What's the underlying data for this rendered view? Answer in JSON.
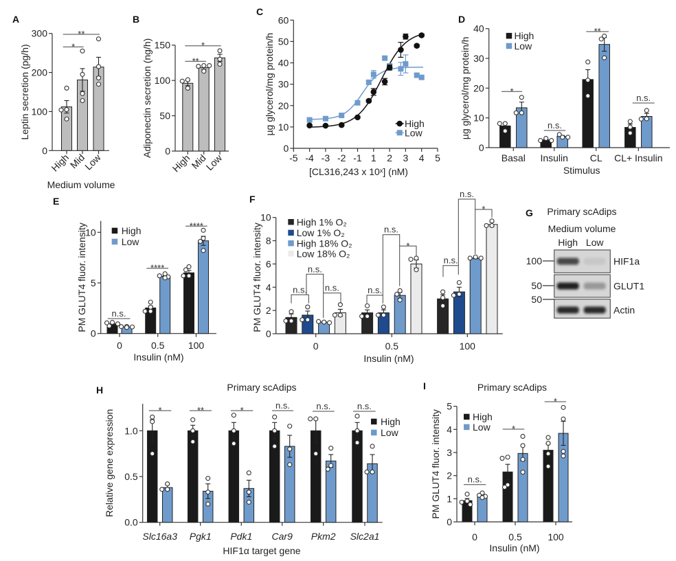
{
  "chart_data": [
    {
      "panel_label": "A",
      "type": "bar",
      "title": "",
      "ylabel": "Leptin secretion (pg/h)",
      "xlabel": "Medium volume",
      "categories": [
        "High",
        "Mid",
        "Low"
      ],
      "ylim": [
        0,
        300
      ],
      "yticks": [
        0,
        100,
        200,
        300
      ],
      "ytick_labels": [
        "0",
        "100",
        "200",
        "300"
      ],
      "grid": false,
      "legend": "none",
      "series": [
        {
          "name": "",
          "color": "#bdbdbd",
          "values": [
            112,
            181,
            214
          ],
          "error": [
            16,
            29,
            25
          ],
          "points": [
            [
              160,
              105,
              104,
              81
            ],
            [
              255,
              195,
              146,
              128
            ],
            [
              286,
              215,
              186,
              170
            ]
          ]
        }
      ],
      "significance": [
        {
          "from": "High",
          "to": "Mid",
          "label": "*"
        },
        {
          "from": "High",
          "to": "Low",
          "label": "**"
        }
      ]
    },
    {
      "panel_label": "B",
      "type": "bar",
      "title": "",
      "ylabel": "Adiponectin secretion (ng/h)",
      "xlabel": "",
      "categories": [
        "High",
        "Mid",
        "Low"
      ],
      "ylim": [
        0,
        150
      ],
      "yticks": [
        0,
        50,
        100,
        150
      ],
      "ytick_labels": [
        "0",
        "50",
        "100",
        "150"
      ],
      "grid": false,
      "legend": "none",
      "series": [
        {
          "name": "",
          "color": "#bdbdbd",
          "values": [
            96,
            118,
            132
          ],
          "error": [
            3.5,
            2.5,
            5
          ],
          "points": [
            [
              101,
              99,
              89
            ],
            [
              121,
              120,
              121,
              113
            ],
            [
              142,
              130,
              123
            ]
          ]
        }
      ],
      "significance": [
        {
          "from": "High",
          "to": "Mid",
          "label": "**"
        },
        {
          "from": "High",
          "to": "Low",
          "label": "*"
        }
      ]
    },
    {
      "panel_label": "C",
      "type": "line",
      "title": "",
      "ylabel": "µg glycerol/mg protein/h",
      "xlabel": "[CL316,243 x 10ˣ] (nM)",
      "xticks": [
        -5,
        -4,
        -3,
        -2,
        -1,
        1,
        2,
        3,
        4,
        5
      ],
      "xtick_labels": [
        "-5",
        "-4",
        "-3",
        "-2",
        "-1",
        "1",
        "2",
        "3",
        "4",
        "5"
      ],
      "xlim": [
        -5,
        5
      ],
      "ylim": [
        0,
        60
      ],
      "yticks": [
        0,
        10,
        20,
        30,
        40,
        50,
        60
      ],
      "ytick_labels": [
        "0",
        "10",
        "20",
        "30",
        "40",
        "50",
        "60"
      ],
      "grid": false,
      "legend": "bottom-right",
      "series": [
        {
          "name": "High",
          "color": "#111111",
          "marker": "circle",
          "x": [
            -4,
            -3,
            -2,
            -1,
            0.4,
            1,
            1.7,
            2,
            2.7,
            3,
            3.7,
            4
          ],
          "y": [
            10.7,
            10.6,
            10.9,
            14.5,
            22.2,
            26.4,
            31.2,
            37.8,
            46.1,
            52.3,
            48.0,
            52.9
          ],
          "error": [
            0.4,
            0.3,
            0.3,
            0.5,
            0.6,
            1.6,
            1.5,
            1.2,
            3.5,
            1.2,
            0.6,
            0.6
          ],
          "fit": {
            "model": "sigmoidal dose-response",
            "bottom": 9.8,
            "top": 55,
            "ec50_x": 1.5,
            "slope": 1.3
          }
        },
        {
          "name": "Low",
          "color": "#6f9bcc",
          "marker": "square",
          "x": [
            -4,
            -3,
            -2,
            -1,
            0.4,
            1,
            1.7,
            2,
            2.7,
            3,
            3.7,
            4
          ],
          "y": [
            13.3,
            13.9,
            15.4,
            21.3,
            30.9,
            34.6,
            42.2,
            38.6,
            37.2,
            39.5,
            34.2,
            33.2
          ],
          "error": [
            0.4,
            0.4,
            0.5,
            0.5,
            0.6,
            1.8,
            0.5,
            1.0,
            3.0,
            4.2,
            0.6,
            0.6
          ],
          "fit": {
            "model": "sigmoidal dose-response",
            "bottom": 13.5,
            "top": 38,
            "ec50_x": -0.4,
            "slope": 1.8
          }
        }
      ]
    },
    {
      "panel_label": "D",
      "type": "bar",
      "title": "",
      "ylabel": "µg glycerol/mg protein/h",
      "xlabel": "Stimulus",
      "categories": [
        "Basal",
        "Insulin",
        "CL",
        "CL+ Insulin"
      ],
      "ylim": [
        0,
        40
      ],
      "yticks": [
        0,
        10,
        20,
        30,
        40
      ],
      "ytick_labels": [
        "0",
        "10",
        "20",
        "30",
        "40"
      ],
      "grid": false,
      "legend": "top-left",
      "series": [
        {
          "name": "High",
          "color": "#1a1a1a",
          "values": [
            7.3,
            2.6,
            22.9,
            6.8
          ],
          "error": [
            0.8,
            0.3,
            3.3,
            1.1
          ],
          "points": [
            [
              8.1,
              8.1,
              5.6
            ],
            [
              3.1,
              2.4,
              2.4
            ],
            [
              28.8,
              22.7,
              17.4
            ],
            [
              8.8,
              6.9,
              4.9
            ]
          ]
        },
        {
          "name": "Low",
          "color": "#6f9bcc",
          "values": [
            13.4,
            3.8,
            34.7,
            10.5
          ],
          "error": [
            1.9,
            0.3,
            2.3,
            1.0
          ],
          "points": [
            [
              16.9,
              11.7,
              11.7
            ],
            [
              3.5,
              4.4,
              3.5
            ],
            [
              37.5,
              36.5,
              30.2
            ],
            [
              9.7,
              12.5,
              9.6
            ]
          ]
        }
      ],
      "significance": [
        {
          "category": "Basal",
          "label": "*"
        },
        {
          "category": "Insulin",
          "label": "n.s."
        },
        {
          "category": "CL",
          "label": "**"
        },
        {
          "category": "CL+ Insulin",
          "label": "n.s."
        }
      ]
    },
    {
      "panel_label": "E",
      "type": "bar",
      "title": "",
      "ylabel": "PM GLUT4 fluor. intensity",
      "xlabel": "Insulin (nM)",
      "categories": [
        "0",
        "0.5",
        "100"
      ],
      "ylim": [
        0,
        11
      ],
      "yticks": [
        0,
        5,
        10
      ],
      "ytick_labels": [
        "0",
        "5",
        "10"
      ],
      "grid": false,
      "legend": "top-left",
      "series": [
        {
          "name": "High",
          "color": "#1a1a1a",
          "values": [
            0.95,
            2.53,
            6.0
          ],
          "error": [
            0.1,
            0.2,
            0.23
          ],
          "points": [
            [
              1.1,
              1.05,
              0.95,
              0.75
            ],
            [
              3.1,
              2.6,
              2.2,
              2.2
            ],
            [
              6.6,
              6.3,
              5.7,
              5.7
            ]
          ]
        },
        {
          "name": "Low",
          "color": "#6f9bcc",
          "values": [
            0.65,
            5.65,
            9.16
          ],
          "error": [
            0.05,
            0.08,
            0.45
          ],
          "points": [
            [
              0.7,
              0.68,
              0.65,
              0.6
            ],
            [
              5.9,
              5.7,
              5.6,
              5.5
            ],
            [
              10.2,
              9.4,
              9.1,
              8.2
            ]
          ]
        }
      ],
      "significance": [
        {
          "category": "0",
          "label": "n.s."
        },
        {
          "category": "0.5",
          "label": "****"
        },
        {
          "category": "100",
          "label": "****"
        }
      ]
    },
    {
      "panel_label": "F",
      "type": "bar",
      "title": "",
      "ylabel": "PM GLUT4 fluor. intensity",
      "xlabel": "Insulin (nM)",
      "categories": [
        "0",
        "0.5",
        "100"
      ],
      "ylim": [
        0,
        10
      ],
      "yticks": [
        0,
        2,
        4,
        6,
        8,
        10
      ],
      "ytick_labels": [
        "0",
        "2",
        "4",
        "6",
        "8",
        "10"
      ],
      "grid": false,
      "legend": "top-left",
      "series": [
        {
          "name": "High 1% O₂",
          "color": "#262626",
          "values": [
            1.4,
            1.8,
            3.0
          ],
          "error": [
            0.3,
            0.25,
            0.35
          ],
          "points": [
            [
              1.9,
              1.1,
              1.1
            ],
            [
              2.4,
              1.5,
              1.5
            ],
            [
              3.6,
              3.1,
              2.4
            ]
          ]
        },
        {
          "name": "Low 1% O₂",
          "color": "#1f4b8e",
          "values": [
            1.6,
            1.8,
            3.6
          ],
          "error": [
            0.35,
            0.25,
            0.4
          ],
          "points": [
            [
              2.3,
              1.2,
              1.2
            ],
            [
              2.3,
              1.6,
              1.6
            ],
            [
              4.4,
              3.4,
              3.3
            ]
          ]
        },
        {
          "name": "High 18% O₂",
          "color": "#6f9bcc",
          "values": [
            1.0,
            3.3,
            6.5
          ],
          "error": [
            0.05,
            0.25,
            0.05
          ],
          "points": [
            [
              1.0,
              1.05,
              0.95
            ],
            [
              3.7,
              3.4,
              2.9
            ],
            [
              6.6,
              6.5,
              6.5
            ]
          ]
        },
        {
          "name": "Low 18% O₂",
          "color": "#ebebeb",
          "values": [
            1.8,
            6.0,
            9.4
          ],
          "error": [
            0.3,
            0.35,
            0.2
          ],
          "points": [
            [
              2.5,
              1.6,
              1.6
            ],
            [
              6.5,
              6.4,
              5.5
            ],
            [
              9.7,
              9.3,
              9.3
            ]
          ]
        }
      ],
      "significance": [
        {
          "category": "0",
          "from": "High 1% O₂",
          "to": "Low 1% O₂",
          "label": "n.s."
        },
        {
          "category": "0",
          "from": "High 18% O₂",
          "to": "Low 18% O₂",
          "label": "n.s."
        },
        {
          "category": "0",
          "from": "Low 1% O₂",
          "to": "High 18% O₂",
          "label": "n.s."
        },
        {
          "category": "0.5",
          "from": "High 1% O₂",
          "to": "Low 1% O₂",
          "label": "n.s."
        },
        {
          "category": "0.5",
          "from": "Low 1% O₂",
          "to": "High 18% O₂",
          "label": "n.s."
        },
        {
          "category": "0.5",
          "from": "High 18% O₂",
          "to": "Low 18% O₂",
          "label": "*"
        },
        {
          "category": "100",
          "from": "High 1% O₂",
          "to": "Low 1% O₂",
          "label": "n.s."
        },
        {
          "category": "100",
          "from": "Low 1% O₂",
          "to": "High 18% O₂",
          "label": "n.s."
        },
        {
          "category": "100",
          "from": "High 18% O₂",
          "to": "Low 18% O₂",
          "label": "*"
        }
      ]
    },
    {
      "panel_label": "H",
      "type": "bar",
      "title": "Primary scAdips",
      "ylabel": "Relative gene expression",
      "xlabel": "HIF1α target gene",
      "categories": [
        "Slc16a3",
        "Pgk1",
        "Pdk1",
        "Car9",
        "Pkm2",
        "Slc2a1"
      ],
      "ylim": [
        0,
        1.3
      ],
      "yticks": [
        0,
        0.5,
        1.0
      ],
      "ytick_labels": [
        "0.0",
        "0.5",
        "1.0"
      ],
      "grid": false,
      "legend": "top-right",
      "series": [
        {
          "name": "High",
          "color": "#1a1a1a",
          "values": [
            1.0,
            1.0,
            1.0,
            1.0,
            1.0,
            1.0
          ],
          "error": [
            0.12,
            0.06,
            0.09,
            0.09,
            0.13,
            0.09
          ],
          "points": [
            [
              1.15,
              1.1,
              0.75
            ],
            [
              1.12,
              1.0,
              0.88
            ],
            [
              1.17,
              1.0,
              0.86
            ],
            [
              1.15,
              1.0,
              0.83
            ],
            [
              1.13,
              1.13,
              0.75
            ],
            [
              1.16,
              1.0,
              0.87
            ]
          ]
        },
        {
          "name": "Low",
          "color": "#6f9bcc",
          "values": [
            0.38,
            0.34,
            0.37,
            0.83,
            0.67,
            0.64
          ],
          "error": [
            0.03,
            0.08,
            0.09,
            0.12,
            0.07,
            0.1
          ],
          "points": [
            [
              0.42,
              0.36,
              0.36
            ],
            [
              0.48,
              0.33,
              0.2
            ],
            [
              0.54,
              0.33,
              0.22
            ],
            [
              1.05,
              0.8,
              0.63
            ],
            [
              0.81,
              0.62,
              0.58
            ],
            [
              0.83,
              0.55,
              0.55
            ]
          ]
        }
      ],
      "significance": [
        {
          "category": "Slc16a3",
          "label": "*"
        },
        {
          "category": "Pgk1",
          "label": "**"
        },
        {
          "category": "Pdk1",
          "label": "*"
        },
        {
          "category": "Car9",
          "label": "n.s."
        },
        {
          "category": "Pkm2",
          "label": "n.s."
        },
        {
          "category": "Slc2a1",
          "label": "n.s."
        }
      ]
    },
    {
      "panel_label": "I",
      "type": "bar",
      "title": "Primary scAdips",
      "ylabel": "PM GLUT4 fluor. intensity",
      "xlabel": "Insulin (nM)",
      "categories": [
        "0",
        "0.5",
        "100"
      ],
      "ylim": [
        0,
        5
      ],
      "yticks": [
        0,
        1,
        2,
        3,
        4,
        5
      ],
      "ytick_labels": [
        "0",
        "1",
        "2",
        "3",
        "4",
        "5"
      ],
      "grid": false,
      "legend": "top-left",
      "series": [
        {
          "name": "High",
          "color": "#1a1a1a",
          "values": [
            0.92,
            2.16,
            3.1
          ],
          "error": [
            0.09,
            0.33,
            0.27
          ],
          "points": [
            [
              1.2,
              0.9,
              0.85,
              0.75
            ],
            [
              2.8,
              2.75,
              1.6,
              1.5
            ],
            [
              3.65,
              3.4,
              2.95,
              2.4
            ]
          ]
        },
        {
          "name": "Low",
          "color": "#6f9bcc",
          "values": [
            1.14,
            2.96,
            3.83
          ],
          "error": [
            0.04,
            0.32,
            0.52
          ],
          "points": [
            [
              1.25,
              1.15,
              1.1,
              1.05
            ],
            [
              3.7,
              3.3,
              2.7,
              2.15
            ],
            [
              4.95,
              4.45,
              3.05,
              2.85
            ]
          ]
        }
      ],
      "significance": [
        {
          "category": "0",
          "label": "n.s."
        },
        {
          "category": "0.5",
          "label": "*"
        },
        {
          "category": "100",
          "label": "*"
        }
      ]
    }
  ],
  "western_blot": {
    "panel_label": "G",
    "title": "Primary scAdips",
    "subtitle": "Medium volume",
    "lanes": [
      "High",
      "Low"
    ],
    "rows": [
      {
        "protein": "HIF1a",
        "marker": "100",
        "band_intensity": [
          0.7,
          0.07
        ]
      },
      {
        "protein": "GLUT1",
        "marker": "50",
        "band_intensity": [
          0.9,
          0.3
        ]
      },
      {
        "protein": "Actin",
        "marker": "50",
        "band_intensity": [
          0.85,
          0.85
        ]
      }
    ]
  }
}
